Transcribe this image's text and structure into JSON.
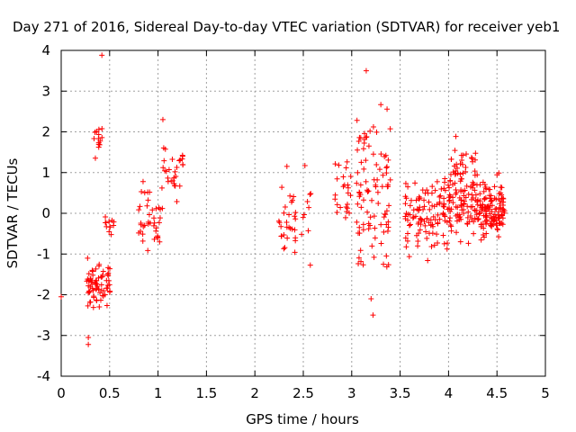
{
  "chart_data": {
    "type": "scatter",
    "title": "Day 271 of 2016, Sidereal Day-to-day VTEC variation (SDTVAR) for receiver yeb1",
    "xlabel": "GPS time / hours",
    "ylabel": "SDTVAR / TECUs",
    "xlim": [
      0,
      5
    ],
    "ylim": [
      -4,
      4
    ],
    "x_ticks": [
      "0",
      "0.5",
      "1",
      "1.5",
      "2",
      "2.5",
      "3",
      "3.5",
      "4",
      "4.5",
      "5"
    ],
    "y_ticks": [
      "4",
      "3",
      "2",
      "1",
      "0",
      "-1",
      "-2",
      "-3",
      "-4"
    ],
    "grid": true,
    "marker": "+",
    "color": "#ff0000",
    "clusters": [
      {
        "x_range": [
          0.26,
          0.52
        ],
        "y_range": [
          -2.6,
          -0.9
        ],
        "count": 70
      },
      {
        "x_range": [
          0.33,
          0.43
        ],
        "y_range": [
          1.2,
          2.6
        ],
        "count": 14
      },
      {
        "x_range": [
          0.45,
          0.56
        ],
        "y_range": [
          -0.6,
          0.1
        ],
        "count": 12
      },
      {
        "x_range": [
          0.8,
          1.05
        ],
        "y_range": [
          -1.1,
          1.05
        ],
        "count": 40
      },
      {
        "x_range": [
          1.05,
          1.28
        ],
        "y_range": [
          0.0,
          1.9
        ],
        "count": 28
      },
      {
        "x_range": [
          2.23,
          2.58
        ],
        "y_range": [
          -2.0,
          1.6
        ],
        "count": 40
      },
      {
        "x_range": [
          2.8,
          3.0
        ],
        "y_range": [
          -0.5,
          1.9
        ],
        "count": 24
      },
      {
        "x_range": [
          3.05,
          3.4
        ],
        "y_range": [
          -2.5,
          3.55
        ],
        "count": 95
      },
      {
        "x_range": [
          3.55,
          4.0
        ],
        "y_range": [
          -1.4,
          1.2
        ],
        "count": 110
      },
      {
        "x_range": [
          4.0,
          4.3
        ],
        "y_range": [
          -1.2,
          2.1
        ],
        "count": 120
      },
      {
        "x_range": [
          4.3,
          4.58
        ],
        "y_range": [
          -0.9,
          1.1
        ],
        "count": 130
      }
    ],
    "outliers": [
      {
        "x": 0.0,
        "y": -2.05
      },
      {
        "x": 0.42,
        "y": 3.88
      },
      {
        "x": 0.28,
        "y": -3.05
      },
      {
        "x": 0.28,
        "y": -3.22
      },
      {
        "x": 1.05,
        "y": 2.3
      },
      {
        "x": 3.15,
        "y": 3.5
      },
      {
        "x": 3.22,
        "y": -2.5
      },
      {
        "x": 3.2,
        "y": -2.1
      }
    ]
  }
}
